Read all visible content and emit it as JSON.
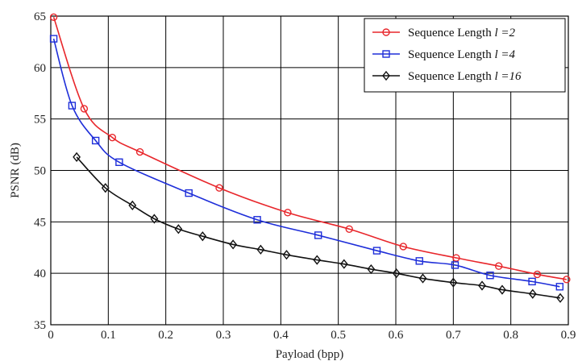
{
  "chart_data": {
    "type": "line",
    "title": "",
    "xlabel": "Payload (bpp)",
    "ylabel": "PSNR (dB)",
    "xlim": [
      0,
      0.9
    ],
    "ylim": [
      35,
      65
    ],
    "x_ticks": [
      0,
      0.1,
      0.2,
      0.3,
      0.4,
      0.5,
      0.6,
      0.7,
      0.8,
      0.9
    ],
    "y_ticks": [
      35,
      40,
      45,
      50,
      55,
      60,
      65
    ],
    "x_tick_labels": [
      "0",
      "0.1",
      "0.2",
      "0.3",
      "0.4",
      "0.5",
      "0.6",
      "0.7",
      "0.8",
      "0.9"
    ],
    "y_tick_labels": [
      "35",
      "40",
      "45",
      "50",
      "55",
      "60",
      "65"
    ],
    "grid": true,
    "legend_position": "top-right",
    "series": [
      {
        "name_prefix": "Sequence Length ",
        "name_var": "l =2",
        "color": "#e8262b",
        "marker": "circle",
        "points": [
          [
            0.005,
            64.9
          ],
          [
            0.058,
            56.0
          ],
          [
            0.107,
            53.2
          ],
          [
            0.155,
            51.8
          ],
          [
            0.293,
            48.3
          ],
          [
            0.412,
            45.9
          ],
          [
            0.519,
            44.3
          ],
          [
            0.613,
            42.6
          ],
          [
            0.705,
            41.5
          ],
          [
            0.779,
            40.7
          ],
          [
            0.846,
            39.9
          ],
          [
            0.897,
            39.4
          ]
        ]
      },
      {
        "name_prefix": "Sequence Length ",
        "name_var": "l =4",
        "color": "#1e2ed9",
        "marker": "square",
        "points": [
          [
            0.005,
            62.8
          ],
          [
            0.037,
            56.3
          ],
          [
            0.078,
            52.9
          ],
          [
            0.119,
            50.8
          ],
          [
            0.24,
            47.8
          ],
          [
            0.359,
            45.2
          ],
          [
            0.465,
            43.7
          ],
          [
            0.567,
            42.2
          ],
          [
            0.641,
            41.2
          ],
          [
            0.703,
            40.8
          ],
          [
            0.764,
            39.8
          ],
          [
            0.837,
            39.2
          ],
          [
            0.885,
            38.7
          ]
        ]
      },
      {
        "name_prefix": "Sequence Length ",
        "name_var": "l =16",
        "color": "#111111",
        "marker": "diamond",
        "points": [
          [
            0.045,
            51.3
          ],
          [
            0.095,
            48.3
          ],
          [
            0.142,
            46.6
          ],
          [
            0.18,
            45.3
          ],
          [
            0.222,
            44.3
          ],
          [
            0.264,
            43.6
          ],
          [
            0.317,
            42.8
          ],
          [
            0.365,
            42.3
          ],
          [
            0.41,
            41.8
          ],
          [
            0.463,
            41.3
          ],
          [
            0.51,
            40.9
          ],
          [
            0.557,
            40.4
          ],
          [
            0.601,
            40.0
          ],
          [
            0.647,
            39.5
          ],
          [
            0.7,
            39.1
          ],
          [
            0.75,
            38.8
          ],
          [
            0.785,
            38.4
          ],
          [
            0.838,
            38.0
          ],
          [
            0.886,
            37.6
          ]
        ]
      }
    ]
  }
}
